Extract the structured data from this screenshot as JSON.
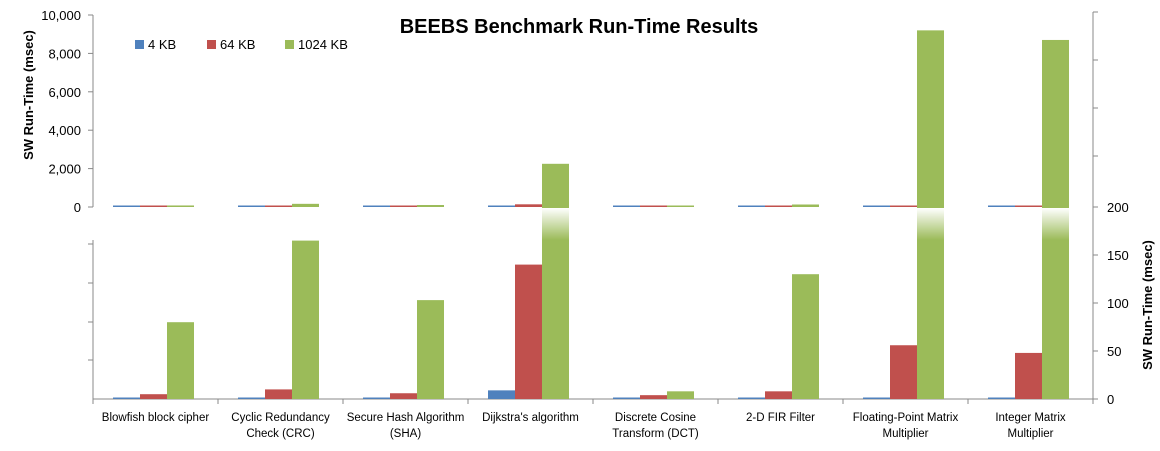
{
  "chart_data": {
    "type": "bar",
    "title": "BEEBS Benchmark Run-Time Results",
    "ylabel": "SW Run-Time (msec)",
    "ylabel_right": "SW Run-Time (msec)",
    "categories": [
      [
        "Blowfish block cipher"
      ],
      [
        "Cyclic Redundancy",
        "Check (CRC)"
      ],
      [
        "Secure Hash Algorithm",
        "(SHA)"
      ],
      [
        "Dijkstra's algorithm"
      ],
      [
        "Discrete Cosine",
        "Transform (DCT)"
      ],
      [
        "2-D FIR Filter"
      ],
      [
        "Floating-Point Matrix",
        "Multiplier"
      ],
      [
        "Integer Matrix",
        "Multiplier"
      ]
    ],
    "series": [
      {
        "name": "4 KB",
        "color": "#4F81BD",
        "values": [
          1,
          1.5,
          1,
          9,
          0.5,
          1,
          1,
          1
        ]
      },
      {
        "name": "64 KB",
        "color": "#C0504D",
        "values": [
          5,
          10,
          6,
          140,
          4,
          8,
          56,
          48
        ]
      },
      {
        "name": "1024 KB",
        "color": "#9BBB59",
        "values": [
          80,
          165,
          103,
          2250,
          8,
          130,
          9200,
          8700
        ]
      }
    ],
    "upper_axis": {
      "min": 0,
      "max": 10000,
      "ticks": [
        0,
        2000,
        4000,
        6000,
        8000,
        10000
      ],
      "tick_labels": [
        "0",
        "2,000",
        "4,000",
        "6,000",
        "8,000",
        "10,000"
      ]
    },
    "lower_axis": {
      "min": 0,
      "max": 200,
      "ticks": [
        0,
        50,
        100,
        150,
        200
      ],
      "tick_labels": [
        "0",
        "50",
        "100",
        "150",
        "200"
      ]
    },
    "legend_position": "top-left"
  }
}
